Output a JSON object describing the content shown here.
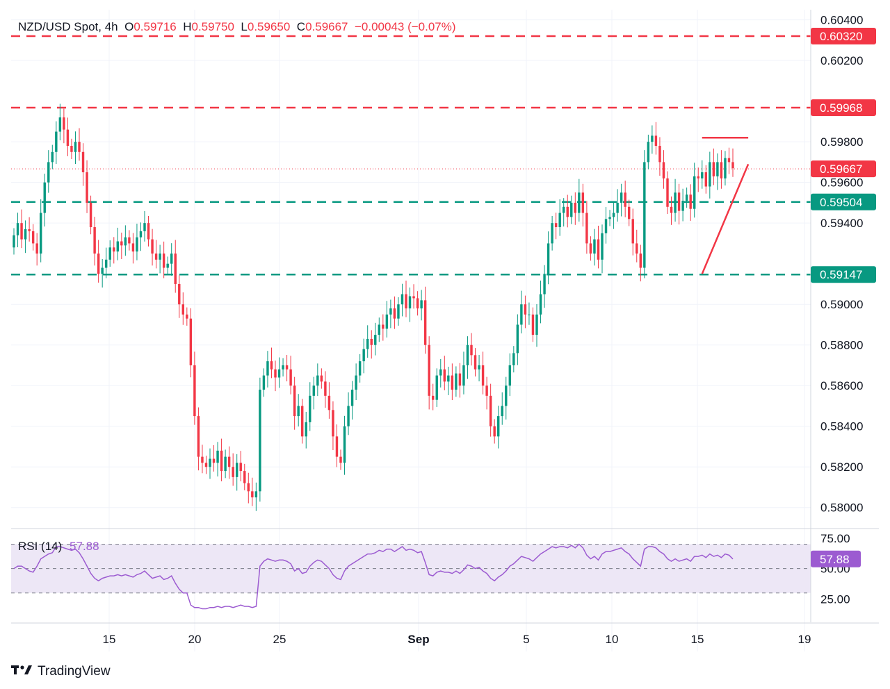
{
  "header": {
    "symbol": "NZD/USD Spot",
    "timeframe": "4h",
    "open_label": "O",
    "open": "0.59716",
    "high_label": "H",
    "high": "0.59750",
    "low_label": "L",
    "low": "0.59650",
    "close_label": "C",
    "close": "0.59667",
    "change": "−0.00043 (−0.07%)"
  },
  "brand": {
    "name": "TradingView",
    "logo_icon": "tradingview-logo-icon"
  },
  "colors": {
    "up": "#089981",
    "down": "#f23645",
    "rsi": "#9c5bd1",
    "rsi_band": "#ede7f6",
    "resistance": "#f23645",
    "support": "#089981"
  },
  "chart_data": [
    {
      "type": "candlestick",
      "title": "NZD/USD Spot, 4h",
      "x_tick_labels": [
        "15",
        "20",
        "25",
        "Sep",
        "5",
        "10",
        "15",
        "19"
      ],
      "y_tick_labels": [
        "0.60400",
        "0.60200",
        "0.59800",
        "0.59600",
        "0.59400",
        "0.59000",
        "0.58800",
        "0.58600",
        "0.58400",
        "0.58200",
        "0.58000"
      ],
      "ylim": [
        0.579,
        0.6045
      ],
      "price_levels": [
        {
          "label": "0.60320",
          "value": 0.6032,
          "color": "#f23645",
          "style": "dashed"
        },
        {
          "label": "0.59968",
          "value": 0.59968,
          "color": "#f23645",
          "style": "dashed"
        },
        {
          "label": "0.59667",
          "value": 0.59667,
          "color": "#f23645",
          "style": "dotted-current"
        },
        {
          "label": "0.59504",
          "value": 0.59504,
          "color": "#089981",
          "style": "dashed"
        },
        {
          "label": "0.59147",
          "value": 0.59147,
          "color": "#089981",
          "style": "dashed"
        }
      ],
      "trendlines": [
        {
          "name": "resistance",
          "from": [
            "Sep 12",
            0.5982
          ],
          "to": [
            "Sep 17",
            0.5982
          ]
        },
        {
          "name": "rising support",
          "from": [
            "Sep 12",
            0.5915
          ],
          "to": [
            "Sep 17",
            0.5969
          ]
        }
      ],
      "close_path": [
        0.5934,
        0.594,
        0.5932,
        0.5937,
        0.5936,
        0.593,
        0.5925,
        0.5945,
        0.596,
        0.597,
        0.5975,
        0.5985,
        0.5992,
        0.5986,
        0.5978,
        0.5975,
        0.598,
        0.5975,
        0.5965,
        0.595,
        0.5938,
        0.5925,
        0.5915,
        0.5918,
        0.5922,
        0.5928,
        0.5926,
        0.5931,
        0.5929,
        0.5933,
        0.593,
        0.5926,
        0.5933,
        0.5936,
        0.594,
        0.5932,
        0.5925,
        0.5922,
        0.5925,
        0.5918,
        0.592,
        0.5925,
        0.591,
        0.59,
        0.5895,
        0.5893,
        0.587,
        0.5845,
        0.5825,
        0.5822,
        0.582,
        0.5824,
        0.5822,
        0.5828,
        0.5818,
        0.5825,
        0.582,
        0.5815,
        0.5822,
        0.5818,
        0.5812,
        0.5808,
        0.5805,
        0.5808,
        0.5858,
        0.5865,
        0.5872,
        0.5868,
        0.5864,
        0.5868,
        0.587,
        0.5868,
        0.586,
        0.5845,
        0.585,
        0.5835,
        0.5842,
        0.5855,
        0.586,
        0.5865,
        0.5862,
        0.5855,
        0.5848,
        0.5835,
        0.5825,
        0.5822,
        0.584,
        0.585,
        0.5858,
        0.5865,
        0.5872,
        0.5878,
        0.5883,
        0.588,
        0.5885,
        0.589,
        0.5888,
        0.5895,
        0.5898,
        0.5893,
        0.59,
        0.5905,
        0.5898,
        0.5904,
        0.5903,
        0.5898,
        0.5902,
        0.588,
        0.5855,
        0.5853,
        0.5865,
        0.5868,
        0.5862,
        0.5865,
        0.5858,
        0.5866,
        0.586,
        0.587,
        0.588,
        0.5875,
        0.5868,
        0.587,
        0.586,
        0.5855,
        0.584,
        0.5835,
        0.5845,
        0.585,
        0.586,
        0.587,
        0.5876,
        0.589,
        0.59,
        0.5895,
        0.5895,
        0.5885,
        0.5895,
        0.5905,
        0.5915,
        0.593,
        0.594,
        0.5938,
        0.5945,
        0.5948,
        0.5943,
        0.595,
        0.5945,
        0.5955,
        0.5945,
        0.593,
        0.5925,
        0.5932,
        0.5922,
        0.5935,
        0.5942,
        0.5943,
        0.5945,
        0.595,
        0.5955,
        0.5948,
        0.5942,
        0.593,
        0.5925,
        0.5918,
        0.597,
        0.598,
        0.5983,
        0.5978,
        0.597,
        0.5962,
        0.5948,
        0.5945,
        0.5955,
        0.5946,
        0.5951,
        0.5954,
        0.5947,
        0.5963,
        0.5962,
        0.5965,
        0.5958,
        0.597,
        0.5963,
        0.597,
        0.5962,
        0.5972,
        0.597,
        0.5967
      ],
      "note": "close_path is the approximate closing price per 4h candle read from the chart; first candle ≈ Aug 11, last candle ≈ Sep 17."
    },
    {
      "type": "line",
      "title": "RSI (14)",
      "current_value": "57.88",
      "y_tick_labels": [
        "75.00",
        "50.00",
        "25.00"
      ],
      "ylim": [
        15,
        80
      ],
      "band": [
        30,
        70
      ],
      "values": [
        50,
        52,
        52,
        50,
        48,
        47,
        52,
        58,
        60,
        62,
        63,
        68,
        68,
        67,
        66,
        65,
        66,
        63,
        58,
        52,
        46,
        42,
        40,
        42,
        43,
        44,
        44,
        45,
        44,
        45,
        44,
        43,
        45,
        46,
        48,
        45,
        42,
        43,
        44,
        41,
        42,
        44,
        38,
        33,
        30,
        30,
        20,
        18,
        18,
        17,
        17,
        18,
        18,
        19,
        18,
        19,
        19,
        18,
        19,
        20,
        19,
        19,
        18,
        19,
        52,
        56,
        58,
        57,
        56,
        57,
        57,
        56,
        54,
        48,
        50,
        46,
        47,
        52,
        55,
        57,
        56,
        53,
        50,
        45,
        42,
        41,
        48,
        52,
        54,
        56,
        58,
        60,
        62,
        62,
        63,
        65,
        64,
        66,
        66,
        64,
        66,
        68,
        65,
        66,
        65,
        63,
        64,
        55,
        45,
        44,
        47,
        48,
        47,
        47,
        46,
        48,
        46,
        49,
        53,
        52,
        50,
        51,
        48,
        46,
        42,
        40,
        43,
        45,
        48,
        52,
        54,
        57,
        60,
        59,
        58,
        56,
        59,
        62,
        64,
        66,
        68,
        67,
        68,
        68,
        67,
        69,
        67,
        70,
        67,
        61,
        58,
        60,
        57,
        62,
        64,
        64,
        65,
        66,
        67,
        64,
        62,
        58,
        55,
        52,
        66,
        68,
        68,
        67,
        64,
        62,
        58,
        56,
        58,
        56,
        57,
        58,
        56,
        60,
        60,
        61,
        59,
        62,
        60,
        61,
        59,
        62,
        61,
        57.88
      ]
    }
  ]
}
